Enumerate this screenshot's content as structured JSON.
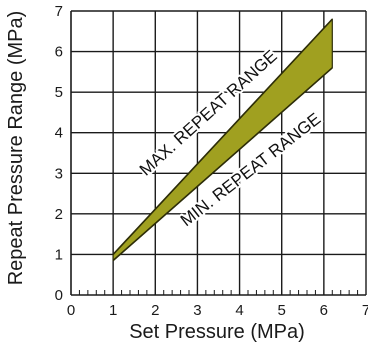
{
  "chart_data": {
    "type": "area",
    "title": "",
    "xlabel": "Set Pressure (MPa)",
    "ylabel": "Repeat Pressure Range  (MPa)",
    "xlim": [
      0,
      7
    ],
    "ylim": [
      0,
      7
    ],
    "x_ticks": [
      "0",
      "1",
      "2",
      "3",
      "4",
      "5",
      "6",
      "7"
    ],
    "y_ticks": [
      "0",
      "1",
      "2",
      "3",
      "4",
      "5",
      "6",
      "7"
    ],
    "grid": true,
    "minor_ticks_x": 0.2,
    "series": [
      {
        "name": "MAX. REPEAT RANGE",
        "points": [
          [
            1.0,
            1.0
          ],
          [
            6.2,
            6.8
          ]
        ]
      },
      {
        "name": "MIN. REPEAT RANGE",
        "points": [
          [
            1.0,
            0.85
          ],
          [
            6.2,
            5.6
          ]
        ]
      }
    ],
    "band_color": "#a0a020",
    "band_edge_color": "#2d2d08"
  }
}
